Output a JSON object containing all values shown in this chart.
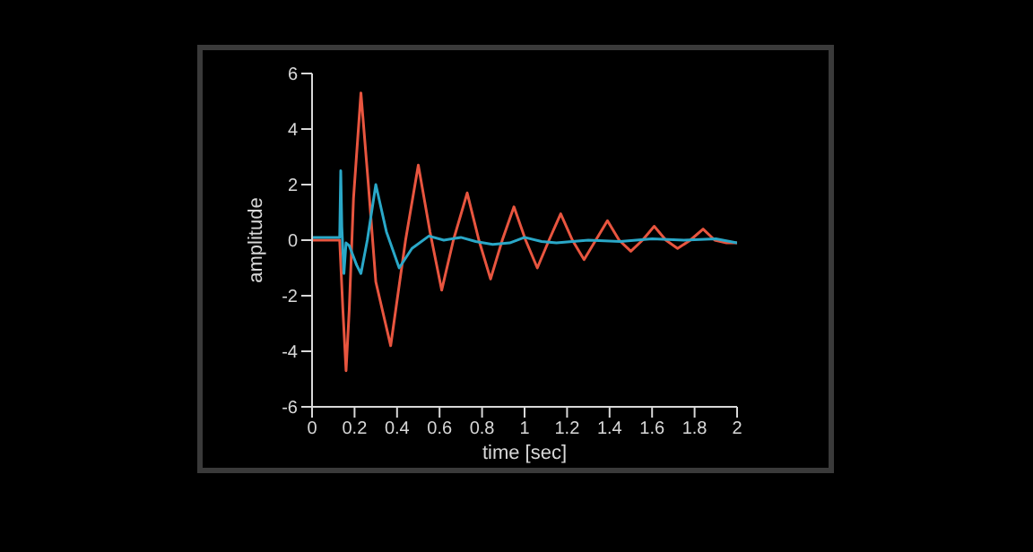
{
  "chart_data": {
    "type": "line",
    "xlabel": "time [sec]",
    "ylabel": "amplitude",
    "xlim": [
      0,
      2
    ],
    "ylim": [
      -6,
      6
    ],
    "xticks": [
      0,
      0.2,
      0.4,
      0.6,
      0.8,
      1,
      1.2,
      1.4,
      1.6,
      1.8,
      2
    ],
    "yticks": [
      -6,
      -4,
      -2,
      0,
      2,
      4,
      6
    ],
    "grid": false,
    "legend": false,
    "marker": "none",
    "line_style": "solid",
    "series": [
      {
        "color": "#e8553f",
        "x": [
          0,
          0.1,
          0.13,
          0.145,
          0.16,
          0.175,
          0.195,
          0.23,
          0.265,
          0.3,
          0.37,
          0.44,
          0.5,
          0.555,
          0.61,
          0.665,
          0.73,
          0.785,
          0.84,
          0.895,
          0.95,
          1.005,
          1.06,
          1.115,
          1.17,
          1.225,
          1.28,
          1.335,
          1.39,
          1.445,
          1.5,
          1.555,
          1.61,
          1.665,
          1.72,
          1.78,
          1.84,
          1.895,
          1.95,
          2
        ],
        "values": [
          0,
          0,
          0,
          -2.5,
          -4.7,
          -2.5,
          1.5,
          5.3,
          2,
          -1.5,
          -3.8,
          0,
          2.7,
          0.3,
          -1.8,
          0,
          1.7,
          0,
          -1.4,
          0,
          1.2,
          0,
          -1,
          0,
          0.95,
          0,
          -0.7,
          0,
          0.7,
          0,
          -0.4,
          0,
          0.5,
          0,
          -0.3,
          0,
          0.4,
          0,
          -0.1,
          -0.1
        ]
      },
      {
        "color": "#2aa8c8",
        "x": [
          0,
          0.1,
          0.13,
          0.135,
          0.14,
          0.15,
          0.16,
          0.175,
          0.19,
          0.21,
          0.23,
          0.26,
          0.3,
          0.35,
          0.41,
          0.47,
          0.55,
          0.62,
          0.7,
          0.77,
          0.85,
          0.93,
          1,
          1.08,
          1.15,
          1.3,
          1.45,
          1.6,
          1.75,
          1.9,
          2
        ],
        "values": [
          0.1,
          0.1,
          0.1,
          2.5,
          0.5,
          -1.2,
          -0.1,
          -0.2,
          -0.5,
          -0.9,
          -1.2,
          0,
          2,
          0.3,
          -1,
          -0.3,
          0.15,
          0,
          0.1,
          -0.05,
          -0.15,
          -0.1,
          0.1,
          -0.05,
          -0.1,
          0,
          -0.05,
          0.05,
          0,
          0.05,
          -0.1
        ]
      }
    ]
  }
}
